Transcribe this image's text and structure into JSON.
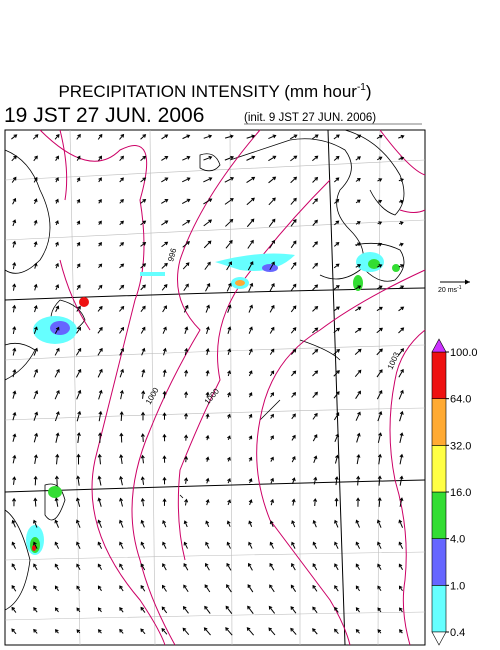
{
  "header": {
    "title": "PRECIPITATION INTENSITY (mm hour",
    "title_superscript": "-1",
    "title_close": ")",
    "valid_time": "19 JST 27 JUN. 2006",
    "init_time": "(init. 9 JST 27 JUN. 2006)"
  },
  "vector_legend": {
    "text": "20 ms",
    "superscript": "-1"
  },
  "colorbar": {
    "ticks": [
      0.4,
      {
        "value": 1.0,
        "label": "1.0"
      },
      {
        "value": 4.0,
        "label": "4.0"
      },
      {
        "value": 16.0,
        "label": "16.0"
      },
      {
        "value": 32.0,
        "label": "32.0"
      },
      {
        "value": 64.0,
        "label": "64.0"
      },
      {
        "value": 100.0,
        "label": "100.0"
      }
    ],
    "colors": [
      "#66ffff",
      "#6666ff",
      "#33dd33",
      "#ffff44",
      "#ffaa33",
      "#ee1111"
    ],
    "over_color": "#cc33ff",
    "under_color": "#ffffff"
  },
  "contour_labels": [
    "996",
    "1000",
    "1000",
    "1003"
  ]
}
